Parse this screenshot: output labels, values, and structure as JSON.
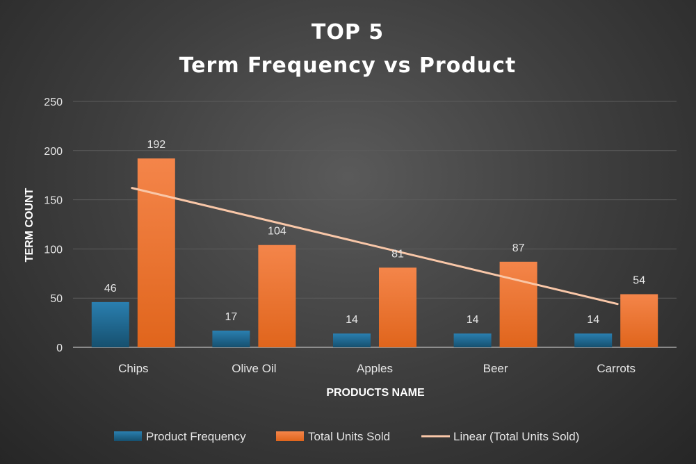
{
  "chart_data": {
    "type": "bar",
    "title_lines": [
      "TOP 5",
      "Term Frequency vs Product"
    ],
    "xlabel": "PRODUCTS NAME",
    "ylabel": "TERM COUNT",
    "ylim": [
      0,
      250
    ],
    "yticks": [
      0,
      50,
      100,
      150,
      200,
      250
    ],
    "categories": [
      "Chips",
      "Olive Oil",
      "Apples",
      "Beer",
      "Carrots"
    ],
    "series": [
      {
        "name": "Product Frequency",
        "color": "#1f6a96",
        "values": [
          46,
          17,
          14,
          14,
          14
        ]
      },
      {
        "name": "Total Units Sold",
        "color": "#f07225",
        "values": [
          192,
          104,
          81,
          87,
          54
        ]
      }
    ],
    "trendline": {
      "name": "Linear (Total Units Sold)",
      "color": "#f9c7a8",
      "start": 162,
      "end": 44
    },
    "grid": true,
    "legend_position": "bottom"
  }
}
